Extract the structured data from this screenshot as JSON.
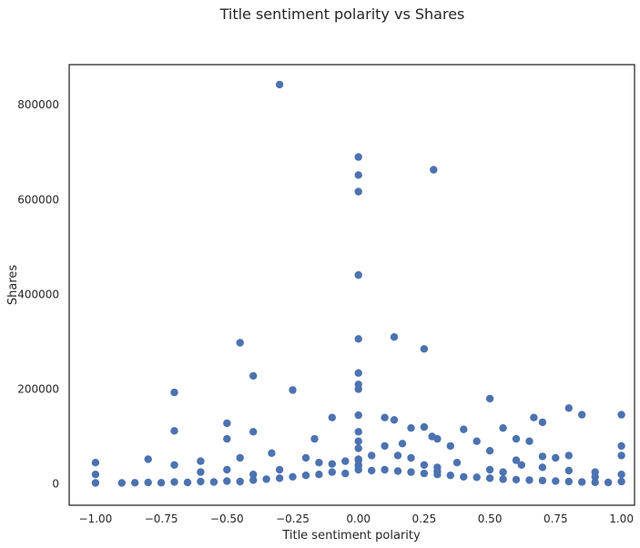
{
  "chart_data": {
    "type": "scatter",
    "title": "Title sentiment polarity vs Shares",
    "xlabel": "Title sentiment polarity",
    "ylabel": "Shares",
    "xlim": [
      -1.1,
      1.05
    ],
    "ylim": [
      -45000,
      885000
    ],
    "x_ticks": [
      -1.0,
      -0.75,
      -0.5,
      -0.25,
      0.0,
      0.25,
      0.5,
      0.75,
      1.0
    ],
    "x_tick_labels": [
      "−1.00",
      "−0.75",
      "−0.50",
      "−0.25",
      "0.00",
      "0.25",
      "0.50",
      "0.75",
      "1.00"
    ],
    "y_ticks": [
      0,
      200000,
      400000,
      600000,
      800000
    ],
    "y_tick_labels": [
      "0",
      "200000",
      "400000",
      "600000",
      "800000"
    ],
    "grid": false,
    "legend": "none",
    "marker_color": "#4c72b0",
    "series": [
      {
        "x": [
          -0.3,
          0.0,
          0.0,
          0.0,
          0.286,
          0.0,
          0.0,
          0.136,
          -0.45,
          0.25,
          -0.4,
          -0.25,
          0.0,
          -0.7,
          0.0,
          0.0,
          0.5,
          0.8,
          0.85,
          1.0,
          -0.7,
          -0.5,
          0.1,
          0.0,
          0.667,
          0.7,
          -1.0,
          -0.9,
          -0.85,
          -0.8,
          -0.75,
          -0.7,
          -0.65,
          -0.6,
          -0.55,
          -0.5,
          -0.45,
          -0.4,
          -0.35,
          -0.3,
          -0.25,
          -0.2,
          -0.15,
          -0.1,
          -0.05,
          0.0,
          0.05,
          0.1,
          0.15,
          0.2,
          0.25,
          0.3,
          0.35,
          0.4,
          0.45,
          0.5,
          0.55,
          0.6,
          0.65,
          0.7,
          0.75,
          0.8,
          0.85,
          0.9,
          0.95,
          1.0,
          -1.0,
          -0.8,
          -0.6,
          -0.5,
          -0.4,
          -0.33,
          -0.2,
          -0.167,
          -0.1,
          0.0,
          0.0,
          0.0,
          0.05,
          0.1,
          0.136,
          0.167,
          0.2,
          0.25,
          0.28,
          0.3,
          0.35,
          0.4,
          0.45,
          0.5,
          0.55,
          0.6,
          0.65,
          0.7,
          0.75,
          0.8,
          0.9,
          1.0,
          1.0,
          0.0,
          0.0,
          -0.3,
          0.25,
          0.3,
          0.375,
          0.5,
          0.62,
          0.55,
          -0.45,
          -0.5,
          1.0,
          -0.15,
          0.0,
          0.15,
          0.2,
          -0.1,
          0.0,
          -0.05,
          0.3,
          -0.7,
          0.7,
          0.8,
          -1.0,
          -0.6,
          0.9,
          0.6,
          -0.4
        ],
        "y": [
          843000,
          690000,
          652000,
          617000,
          663000,
          441000,
          306000,
          310000,
          298000,
          285000,
          228000,
          198000,
          234000,
          193000,
          210000,
          200000,
          180000,
          160000,
          146000,
          146000,
          112000,
          128000,
          140000,
          145000,
          140000,
          130000,
          2000,
          2000,
          2500,
          3000,
          2500,
          4000,
          3000,
          5000,
          4000,
          6000,
          5000,
          8000,
          10000,
          12000,
          15000,
          18000,
          20000,
          25000,
          22000,
          30000,
          28000,
          30000,
          27000,
          25000,
          22000,
          20000,
          18000,
          15000,
          14000,
          12000,
          10000,
          9000,
          8000,
          7000,
          6000,
          5000,
          4000,
          3500,
          3000,
          5000,
          45000,
          52000,
          48000,
          95000,
          110000,
          65000,
          55000,
          95000,
          140000,
          110000,
          90000,
          75000,
          60000,
          80000,
          135000,
          85000,
          118000,
          120000,
          100000,
          95000,
          80000,
          115000,
          90000,
          70000,
          118000,
          95000,
          90000,
          58000,
          55000,
          60000,
          25000,
          80000,
          60000,
          50000,
          40000,
          30000,
          40000,
          35000,
          45000,
          30000,
          40000,
          25000,
          55000,
          30000,
          20000,
          45000,
          52000,
          60000,
          55000,
          42000,
          38000,
          48000,
          26000,
          40000,
          35000,
          28000,
          20000,
          25000,
          15000,
          50000,
          20000
        ]
      }
    ]
  }
}
